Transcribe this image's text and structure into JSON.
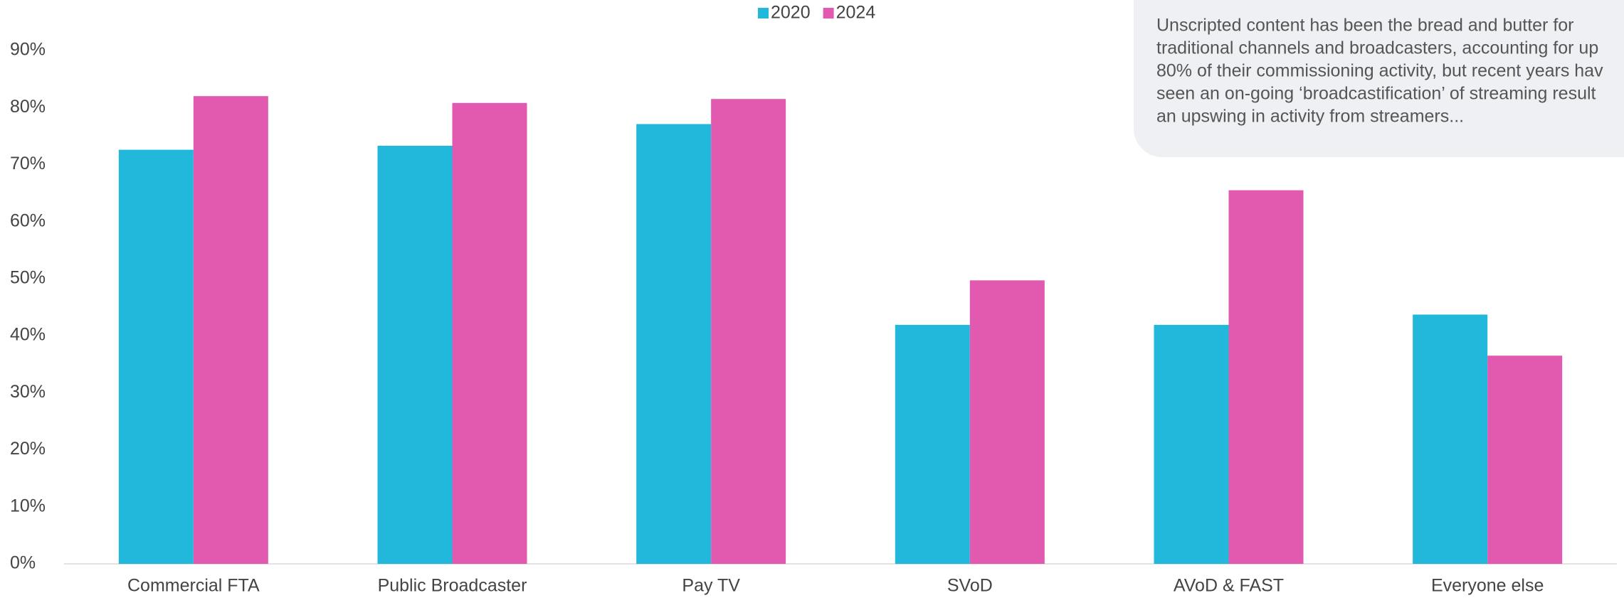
{
  "chart_data": {
    "type": "bar",
    "categories": [
      "Commercial FTA",
      "Public Broadcaster",
      "Pay TV",
      "SVoD",
      "AVoD & FAST",
      "Everyone else"
    ],
    "series": [
      {
        "name": "2020",
        "color": "#22b8dc",
        "values": [
          72.6,
          73.3,
          77.1,
          41.9,
          41.9,
          43.7
        ]
      },
      {
        "name": "2024",
        "color": "#e25ab0",
        "values": [
          82.0,
          80.8,
          81.5,
          49.7,
          65.5,
          36.5
        ]
      }
    ],
    "ylim": [
      0,
      90
    ],
    "yticks": [
      {
        "value": 0,
        "label": "0%"
      },
      {
        "value": 10,
        "label": "10%"
      },
      {
        "value": 20,
        "label": "20%"
      },
      {
        "value": 30,
        "label": "30%"
      },
      {
        "value": 40,
        "label": "40%"
      },
      {
        "value": 50,
        "label": "50%"
      },
      {
        "value": 60,
        "label": "60%"
      },
      {
        "value": 70,
        "label": "70%"
      },
      {
        "value": 80,
        "label": "80%"
      },
      {
        "value": 90,
        "label": "90%"
      }
    ],
    "grid": false,
    "legend": "top",
    "annotation": [
      "Unscripted content has been the bread and butter for",
      "traditional channels and broadcasters, accounting for up",
      "80% of their commissioning activity, but recent years hav",
      "seen an on-going ‘broadcastification’ of streaming result",
      "an upswing in activity from streamers..."
    ]
  }
}
